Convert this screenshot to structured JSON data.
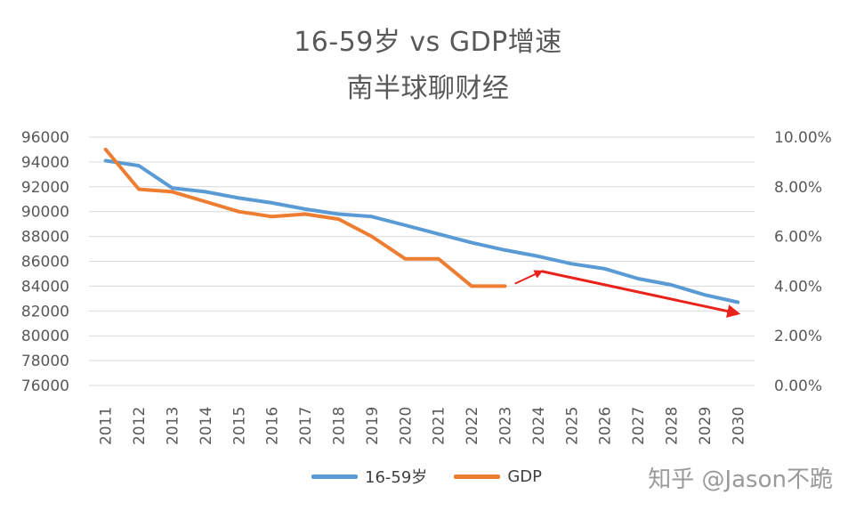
{
  "chart_data": {
    "type": "line",
    "title": "16-59岁 vs GDP增速",
    "subtitle": "南半球聊财经",
    "x": [
      "2011",
      "2012",
      "2013",
      "2014",
      "2015",
      "2016",
      "2017",
      "2018",
      "2019",
      "2020",
      "2021",
      "2022",
      "2023",
      "2024",
      "2025",
      "2026",
      "2027",
      "2028",
      "2029",
      "2030"
    ],
    "y_left": {
      "ylim": [
        76000,
        96000
      ],
      "ticks": [
        "76000",
        "78000",
        "80000",
        "82000",
        "84000",
        "86000",
        "88000",
        "90000",
        "92000",
        "94000",
        "96000"
      ]
    },
    "y_right": {
      "ylim": [
        0,
        0.1
      ],
      "ticks": [
        "0.00%",
        "2.00%",
        "4.00%",
        "6.00%",
        "8.00%",
        "10.00%"
      ]
    },
    "series": [
      {
        "name": "16-59岁",
        "axis": "left",
        "color": "#5b9bd5",
        "values": [
          94100,
          93700,
          91900,
          91600,
          91100,
          90700,
          90200,
          89800,
          89600,
          88900,
          88200,
          87500,
          86900,
          86400,
          85800,
          85400,
          84600,
          84100,
          83300,
          82700
        ]
      },
      {
        "name": "GDP",
        "axis": "right",
        "color": "#ed7d31",
        "values": [
          0.095,
          0.079,
          0.078,
          0.074,
          0.07,
          0.068,
          0.069,
          0.067,
          0.06,
          0.051,
          0.051,
          0.04,
          0.04,
          null,
          null,
          null,
          null,
          null,
          null,
          null
        ]
      }
    ],
    "annotations": [
      {
        "type": "arrow",
        "color": "#e8231c",
        "from": [
          2023.3,
          0.041
        ],
        "to": [
          2024.1,
          0.046
        ]
      },
      {
        "type": "arrow",
        "color": "#e8231c",
        "from": [
          2024.1,
          0.046
        ],
        "to": [
          2030,
          0.029
        ]
      }
    ],
    "grid": true,
    "legend_position": "bottom-center"
  },
  "watermark": "知乎 @Jason不跪",
  "colors": {
    "gridline": "#d9d9d9",
    "tick_text": "#595959",
    "title_text": "#595959",
    "arrow": "#e8231c"
  }
}
